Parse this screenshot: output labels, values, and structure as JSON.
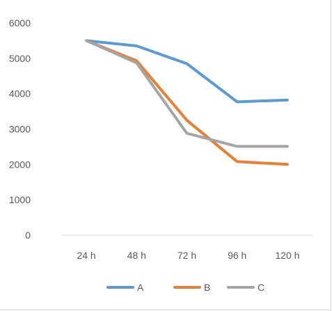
{
  "chart_data": {
    "type": "line",
    "title": "",
    "xlabel": "",
    "ylabel": "",
    "categories": [
      "24 h",
      "48 h",
      "72 h",
      "96 h",
      "120 h"
    ],
    "ylim": [
      0,
      6000
    ],
    "yticks": [
      0,
      1000,
      2000,
      3000,
      4000,
      5000,
      6000
    ],
    "grid": false,
    "legend_position": "bottom",
    "series": [
      {
        "name": "A",
        "color": "#5b9bd5",
        "values": [
          5500,
          5350,
          4850,
          3770,
          3820
        ]
      },
      {
        "name": "B",
        "color": "#ed7d31",
        "values": [
          5500,
          4930,
          3250,
          2080,
          2000
        ]
      },
      {
        "name": "C",
        "color": "#a5a5a5",
        "values": [
          5500,
          4870,
          2880,
          2510,
          2510
        ]
      }
    ]
  }
}
